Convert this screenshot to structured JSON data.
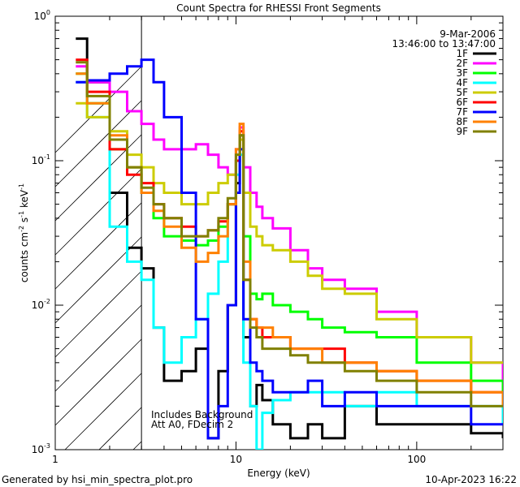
{
  "chart_data": {
    "type": "line",
    "title": "Count Spectra for RHESSI Front Segments",
    "xlabel": "Energy (keV)",
    "ylabel_parts": [
      "counts cm",
      "-2",
      " s",
      "-1",
      " keV",
      "-1"
    ],
    "xscale": "log",
    "yscale": "log",
    "xlim": [
      1,
      300
    ],
    "ylim": [
      0.001,
      1
    ],
    "x_ticks": [
      {
        "value": 1,
        "label": "1"
      },
      {
        "value": 10,
        "label": "10"
      },
      {
        "value": 100,
        "label": "100"
      }
    ],
    "y_ticks": [
      {
        "value": 1,
        "base": "10",
        "exp": "0"
      },
      {
        "value": 0.1,
        "base": "10",
        "exp": "-1"
      },
      {
        "value": 0.01,
        "base": "10",
        "exp": "-2"
      },
      {
        "value": 0.001,
        "base": "10",
        "exp": "-3"
      }
    ],
    "date": "9-Mar-2006",
    "time_range": "13:46:00 to 13:47:00",
    "shaded_region_x": [
      1,
      3
    ],
    "annotations": [
      "Includes Background",
      "Att A0, FDecim 2"
    ],
    "footer_left": "Generated by hsi_min_spectra_plot.pro",
    "footer_right": "10-Apr-2023 16:22",
    "series": [
      {
        "name": "1F",
        "color": "#000000",
        "x": [
          1.3,
          1.5,
          2,
          2.5,
          3,
          3.5,
          4,
          5,
          6,
          7,
          8,
          9,
          10,
          10.5,
          11,
          12,
          13,
          14,
          16,
          20,
          25,
          30,
          40,
          60,
          100,
          200,
          300
        ],
        "y": [
          0.7,
          0.35,
          0.06,
          0.025,
          0.018,
          0.007,
          0.003,
          0.0035,
          0.005,
          0.0012,
          0.0035,
          0.01,
          0.07,
          0.15,
          0.006,
          0.002,
          0.0028,
          0.0022,
          0.0015,
          0.0012,
          0.0015,
          0.0012,
          0.002,
          0.0015,
          0.0015,
          0.0013,
          0.0012
        ]
      },
      {
        "name": "2F",
        "color": "#ff00ff",
        "x": [
          1.3,
          1.5,
          2,
          2.5,
          3,
          3.5,
          4,
          5,
          6,
          7,
          8,
          9,
          10,
          10.5,
          11,
          12,
          13,
          14,
          16,
          20,
          25,
          30,
          40,
          60,
          100,
          200,
          300
        ],
        "y": [
          0.45,
          0.35,
          0.3,
          0.22,
          0.18,
          0.14,
          0.12,
          0.12,
          0.13,
          0.11,
          0.09,
          0.08,
          0.12,
          0.17,
          0.09,
          0.06,
          0.048,
          0.04,
          0.034,
          0.024,
          0.018,
          0.015,
          0.013,
          0.009,
          0.006,
          0.004,
          0.003
        ]
      },
      {
        "name": "3F",
        "color": "#00ff00",
        "x": [
          1.3,
          1.5,
          2,
          2.5,
          3,
          3.5,
          4,
          5,
          6,
          7,
          8,
          9,
          10,
          10.5,
          11,
          12,
          13,
          14,
          16,
          20,
          25,
          30,
          40,
          60,
          100,
          200,
          300
        ],
        "y": [
          0.4,
          0.25,
          0.12,
          0.09,
          0.06,
          0.04,
          0.03,
          0.028,
          0.026,
          0.028,
          0.035,
          0.05,
          0.1,
          0.14,
          0.03,
          0.012,
          0.011,
          0.012,
          0.01,
          0.009,
          0.008,
          0.007,
          0.0065,
          0.006,
          0.004,
          0.003,
          0.0025
        ]
      },
      {
        "name": "4F",
        "color": "#00ffff",
        "x": [
          1.3,
          1.5,
          2,
          2.5,
          3,
          3.5,
          4,
          5,
          6,
          7,
          8,
          9,
          10,
          10.5,
          11,
          12,
          13,
          14,
          16,
          20,
          25,
          30,
          40,
          60,
          100,
          200,
          300
        ],
        "y": [
          0.35,
          0.2,
          0.035,
          0.02,
          0.015,
          0.007,
          0.004,
          0.006,
          0.008,
          0.012,
          0.02,
          0.05,
          0.08,
          0.11,
          0.004,
          0.002,
          0.001,
          0.0018,
          0.0022,
          0.0025,
          0.0025,
          0.0025,
          0.002,
          0.0025,
          0.002,
          0.002,
          0.0015
        ]
      },
      {
        "name": "5F",
        "color": "#cccc00",
        "x": [
          1.3,
          1.5,
          2,
          2.5,
          3,
          3.5,
          4,
          5,
          6,
          7,
          8,
          9,
          10,
          10.5,
          11,
          12,
          13,
          14,
          16,
          20,
          25,
          30,
          40,
          60,
          100,
          200,
          300
        ],
        "y": [
          0.25,
          0.2,
          0.16,
          0.11,
          0.09,
          0.07,
          0.06,
          0.05,
          0.05,
          0.06,
          0.07,
          0.08,
          0.1,
          0.14,
          0.06,
          0.035,
          0.03,
          0.026,
          0.024,
          0.02,
          0.016,
          0.013,
          0.012,
          0.008,
          0.006,
          0.004,
          0.004
        ]
      },
      {
        "name": "6F",
        "color": "#ff0000",
        "x": [
          1.3,
          1.5,
          2,
          2.5,
          3,
          3.5,
          4,
          5,
          6,
          7,
          8,
          9,
          10,
          10.5,
          11,
          12,
          13,
          14,
          16,
          20,
          25,
          30,
          40,
          60,
          100,
          200,
          300
        ],
        "y": [
          0.5,
          0.3,
          0.12,
          0.08,
          0.07,
          0.05,
          0.04,
          0.035,
          0.03,
          0.033,
          0.038,
          0.05,
          0.1,
          0.16,
          0.015,
          0.008,
          0.007,
          0.006,
          0.006,
          0.005,
          0.005,
          0.005,
          0.004,
          0.0035,
          0.003,
          0.0025,
          0.002
        ]
      },
      {
        "name": "7F",
        "color": "#0000ff",
        "x": [
          1.3,
          1.5,
          2,
          2.5,
          3,
          3.5,
          4,
          5,
          6,
          7,
          8,
          9,
          10,
          10.5,
          11,
          12,
          13,
          14,
          16,
          20,
          25,
          30,
          40,
          60,
          100,
          200,
          300
        ],
        "y": [
          0.35,
          0.36,
          0.4,
          0.45,
          0.5,
          0.35,
          0.2,
          0.06,
          0.008,
          0.0012,
          0.002,
          0.01,
          0.06,
          0.12,
          0.008,
          0.004,
          0.0035,
          0.003,
          0.0025,
          0.0025,
          0.003,
          0.002,
          0.0025,
          0.002,
          0.002,
          0.0015,
          0.0015
        ]
      },
      {
        "name": "8F",
        "color": "#ff8000",
        "x": [
          1.3,
          1.5,
          2,
          2.5,
          3,
          3.5,
          4,
          5,
          6,
          7,
          8,
          9,
          10,
          10.5,
          11,
          12,
          13,
          14,
          16,
          20,
          25,
          30,
          40,
          60,
          100,
          200,
          300
        ],
        "y": [
          0.4,
          0.25,
          0.15,
          0.09,
          0.06,
          0.045,
          0.035,
          0.025,
          0.02,
          0.023,
          0.03,
          0.05,
          0.12,
          0.18,
          0.02,
          0.008,
          0.007,
          0.007,
          0.006,
          0.005,
          0.005,
          0.004,
          0.004,
          0.0035,
          0.003,
          0.0025,
          0.002
        ]
      },
      {
        "name": "9F",
        "color": "#808000",
        "x": [
          1.3,
          1.5,
          2,
          2.5,
          3,
          3.5,
          4,
          5,
          6,
          7,
          8,
          9,
          10,
          10.5,
          11,
          12,
          13,
          14,
          16,
          20,
          25,
          30,
          40,
          60,
          100,
          200,
          300
        ],
        "y": [
          0.48,
          0.28,
          0.14,
          0.09,
          0.065,
          0.05,
          0.04,
          0.03,
          0.03,
          0.033,
          0.04,
          0.055,
          0.11,
          0.15,
          0.015,
          0.007,
          0.006,
          0.005,
          0.005,
          0.0045,
          0.004,
          0.004,
          0.0035,
          0.003,
          0.0025,
          0.002,
          0.002
        ]
      }
    ]
  }
}
